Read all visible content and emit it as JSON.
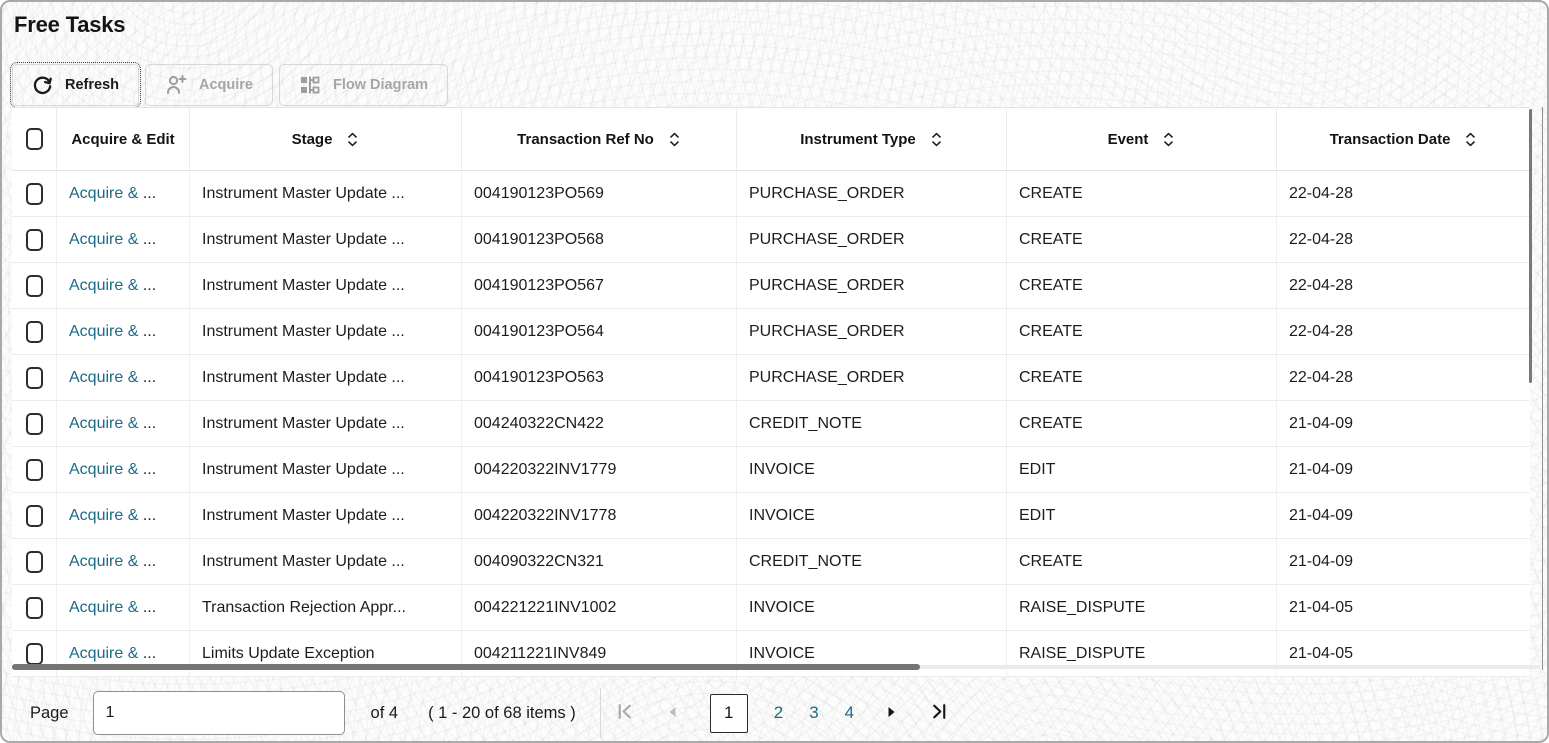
{
  "page": {
    "title": "Free Tasks"
  },
  "toolbar": {
    "refresh_label": "Refresh",
    "acquire_label": "Acquire",
    "flow_diagram_label": "Flow Diagram"
  },
  "table": {
    "action_label": "Acquire & ",
    "truncation_ellipsis": "...",
    "columns": [
      {
        "label": "Acquire & Edit",
        "sortable": false
      },
      {
        "label": "Stage",
        "sortable": true
      },
      {
        "label": "Transaction Ref No",
        "sortable": true
      },
      {
        "label": "Instrument Type",
        "sortable": true
      },
      {
        "label": "Event",
        "sortable": true
      },
      {
        "label": "Transaction Date",
        "sortable": true
      }
    ],
    "rows": [
      {
        "stage": "Instrument Master Update ...",
        "ref_no": "004190123PO569",
        "instrument_type": "PURCHASE_ORDER",
        "event": "CREATE",
        "date": "22-04-28"
      },
      {
        "stage": "Instrument Master Update ...",
        "ref_no": "004190123PO568",
        "instrument_type": "PURCHASE_ORDER",
        "event": "CREATE",
        "date": "22-04-28"
      },
      {
        "stage": "Instrument Master Update ...",
        "ref_no": "004190123PO567",
        "instrument_type": "PURCHASE_ORDER",
        "event": "CREATE",
        "date": "22-04-28"
      },
      {
        "stage": "Instrument Master Update ...",
        "ref_no": "004190123PO564",
        "instrument_type": "PURCHASE_ORDER",
        "event": "CREATE",
        "date": "22-04-28"
      },
      {
        "stage": "Instrument Master Update ...",
        "ref_no": "004190123PO563",
        "instrument_type": "PURCHASE_ORDER",
        "event": "CREATE",
        "date": "22-04-28"
      },
      {
        "stage": "Instrument Master Update ...",
        "ref_no": "004240322CN422",
        "instrument_type": "CREDIT_NOTE",
        "event": "CREATE",
        "date": "21-04-09"
      },
      {
        "stage": "Instrument Master Update ...",
        "ref_no": "004220322INV1779",
        "instrument_type": "INVOICE",
        "event": "EDIT",
        "date": "21-04-09"
      },
      {
        "stage": "Instrument Master Update ...",
        "ref_no": "004220322INV1778",
        "instrument_type": "INVOICE",
        "event": "EDIT",
        "date": "21-04-09"
      },
      {
        "stage": "Instrument Master Update ...",
        "ref_no": "004090322CN321",
        "instrument_type": "CREDIT_NOTE",
        "event": "CREATE",
        "date": "21-04-09"
      },
      {
        "stage": "Transaction Rejection Appr...",
        "ref_no": "004221221INV1002",
        "instrument_type": "INVOICE",
        "event": "RAISE_DISPUTE",
        "date": "21-04-05"
      },
      {
        "stage": "Limits Update Exception",
        "ref_no": "004211221INV849",
        "instrument_type": "INVOICE",
        "event": "RAISE_DISPUTE",
        "date": "21-04-05"
      }
    ]
  },
  "pagination": {
    "page_label": "Page",
    "page_input_value": "1",
    "of_label": "of 4",
    "items_label": "( 1 - 20 of 68 items )",
    "current_page": "1",
    "pages": [
      "1",
      "2",
      "3",
      "4"
    ]
  },
  "colors": {
    "link_accent": "#1b6b88",
    "text": "#1a1a1a",
    "disabled_text": "#a6a6a6",
    "scrollbar_thumb": "#757575"
  }
}
